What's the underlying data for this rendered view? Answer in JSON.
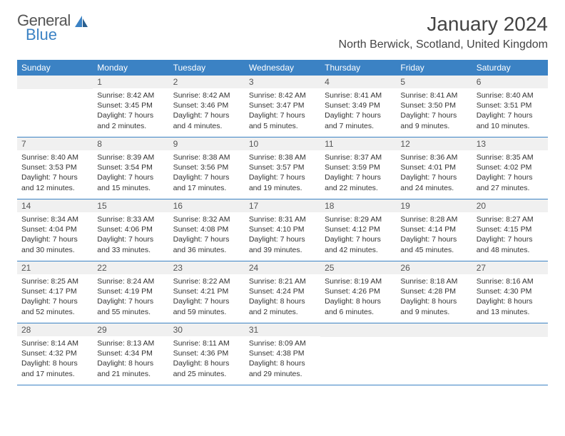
{
  "logo": {
    "top": "General",
    "bottom": "Blue"
  },
  "title": "January 2024",
  "location": "North Berwick, Scotland, United Kingdom",
  "weekdays": [
    "Sunday",
    "Monday",
    "Tuesday",
    "Wednesday",
    "Thursday",
    "Friday",
    "Saturday"
  ],
  "colors": {
    "header_bg": "#3b82c4",
    "header_text": "#ffffff",
    "daynum_bg": "#f0f0f0",
    "border": "#3b82c4",
    "text": "#333333"
  },
  "typography": {
    "title_fontsize": 28,
    "location_fontsize": 16,
    "weekday_fontsize": 12,
    "daynum_fontsize": 12,
    "body_fontsize": 10.5
  },
  "weeks": [
    [
      null,
      {
        "num": "1",
        "sunrise": "Sunrise: 8:42 AM",
        "sunset": "Sunset: 3:45 PM",
        "daylight": "Daylight: 7 hours and 2 minutes."
      },
      {
        "num": "2",
        "sunrise": "Sunrise: 8:42 AM",
        "sunset": "Sunset: 3:46 PM",
        "daylight": "Daylight: 7 hours and 4 minutes."
      },
      {
        "num": "3",
        "sunrise": "Sunrise: 8:42 AM",
        "sunset": "Sunset: 3:47 PM",
        "daylight": "Daylight: 7 hours and 5 minutes."
      },
      {
        "num": "4",
        "sunrise": "Sunrise: 8:41 AM",
        "sunset": "Sunset: 3:49 PM",
        "daylight": "Daylight: 7 hours and 7 minutes."
      },
      {
        "num": "5",
        "sunrise": "Sunrise: 8:41 AM",
        "sunset": "Sunset: 3:50 PM",
        "daylight": "Daylight: 7 hours and 9 minutes."
      },
      {
        "num": "6",
        "sunrise": "Sunrise: 8:40 AM",
        "sunset": "Sunset: 3:51 PM",
        "daylight": "Daylight: 7 hours and 10 minutes."
      }
    ],
    [
      {
        "num": "7",
        "sunrise": "Sunrise: 8:40 AM",
        "sunset": "Sunset: 3:53 PM",
        "daylight": "Daylight: 7 hours and 12 minutes."
      },
      {
        "num": "8",
        "sunrise": "Sunrise: 8:39 AM",
        "sunset": "Sunset: 3:54 PM",
        "daylight": "Daylight: 7 hours and 15 minutes."
      },
      {
        "num": "9",
        "sunrise": "Sunrise: 8:38 AM",
        "sunset": "Sunset: 3:56 PM",
        "daylight": "Daylight: 7 hours and 17 minutes."
      },
      {
        "num": "10",
        "sunrise": "Sunrise: 8:38 AM",
        "sunset": "Sunset: 3:57 PM",
        "daylight": "Daylight: 7 hours and 19 minutes."
      },
      {
        "num": "11",
        "sunrise": "Sunrise: 8:37 AM",
        "sunset": "Sunset: 3:59 PM",
        "daylight": "Daylight: 7 hours and 22 minutes."
      },
      {
        "num": "12",
        "sunrise": "Sunrise: 8:36 AM",
        "sunset": "Sunset: 4:01 PM",
        "daylight": "Daylight: 7 hours and 24 minutes."
      },
      {
        "num": "13",
        "sunrise": "Sunrise: 8:35 AM",
        "sunset": "Sunset: 4:02 PM",
        "daylight": "Daylight: 7 hours and 27 minutes."
      }
    ],
    [
      {
        "num": "14",
        "sunrise": "Sunrise: 8:34 AM",
        "sunset": "Sunset: 4:04 PM",
        "daylight": "Daylight: 7 hours and 30 minutes."
      },
      {
        "num": "15",
        "sunrise": "Sunrise: 8:33 AM",
        "sunset": "Sunset: 4:06 PM",
        "daylight": "Daylight: 7 hours and 33 minutes."
      },
      {
        "num": "16",
        "sunrise": "Sunrise: 8:32 AM",
        "sunset": "Sunset: 4:08 PM",
        "daylight": "Daylight: 7 hours and 36 minutes."
      },
      {
        "num": "17",
        "sunrise": "Sunrise: 8:31 AM",
        "sunset": "Sunset: 4:10 PM",
        "daylight": "Daylight: 7 hours and 39 minutes."
      },
      {
        "num": "18",
        "sunrise": "Sunrise: 8:29 AM",
        "sunset": "Sunset: 4:12 PM",
        "daylight": "Daylight: 7 hours and 42 minutes."
      },
      {
        "num": "19",
        "sunrise": "Sunrise: 8:28 AM",
        "sunset": "Sunset: 4:14 PM",
        "daylight": "Daylight: 7 hours and 45 minutes."
      },
      {
        "num": "20",
        "sunrise": "Sunrise: 8:27 AM",
        "sunset": "Sunset: 4:15 PM",
        "daylight": "Daylight: 7 hours and 48 minutes."
      }
    ],
    [
      {
        "num": "21",
        "sunrise": "Sunrise: 8:25 AM",
        "sunset": "Sunset: 4:17 PM",
        "daylight": "Daylight: 7 hours and 52 minutes."
      },
      {
        "num": "22",
        "sunrise": "Sunrise: 8:24 AM",
        "sunset": "Sunset: 4:19 PM",
        "daylight": "Daylight: 7 hours and 55 minutes."
      },
      {
        "num": "23",
        "sunrise": "Sunrise: 8:22 AM",
        "sunset": "Sunset: 4:21 PM",
        "daylight": "Daylight: 7 hours and 59 minutes."
      },
      {
        "num": "24",
        "sunrise": "Sunrise: 8:21 AM",
        "sunset": "Sunset: 4:24 PM",
        "daylight": "Daylight: 8 hours and 2 minutes."
      },
      {
        "num": "25",
        "sunrise": "Sunrise: 8:19 AM",
        "sunset": "Sunset: 4:26 PM",
        "daylight": "Daylight: 8 hours and 6 minutes."
      },
      {
        "num": "26",
        "sunrise": "Sunrise: 8:18 AM",
        "sunset": "Sunset: 4:28 PM",
        "daylight": "Daylight: 8 hours and 9 minutes."
      },
      {
        "num": "27",
        "sunrise": "Sunrise: 8:16 AM",
        "sunset": "Sunset: 4:30 PM",
        "daylight": "Daylight: 8 hours and 13 minutes."
      }
    ],
    [
      {
        "num": "28",
        "sunrise": "Sunrise: 8:14 AM",
        "sunset": "Sunset: 4:32 PM",
        "daylight": "Daylight: 8 hours and 17 minutes."
      },
      {
        "num": "29",
        "sunrise": "Sunrise: 8:13 AM",
        "sunset": "Sunset: 4:34 PM",
        "daylight": "Daylight: 8 hours and 21 minutes."
      },
      {
        "num": "30",
        "sunrise": "Sunrise: 8:11 AM",
        "sunset": "Sunset: 4:36 PM",
        "daylight": "Daylight: 8 hours and 25 minutes."
      },
      {
        "num": "31",
        "sunrise": "Sunrise: 8:09 AM",
        "sunset": "Sunset: 4:38 PM",
        "daylight": "Daylight: 8 hours and 29 minutes."
      },
      null,
      null,
      null
    ]
  ]
}
